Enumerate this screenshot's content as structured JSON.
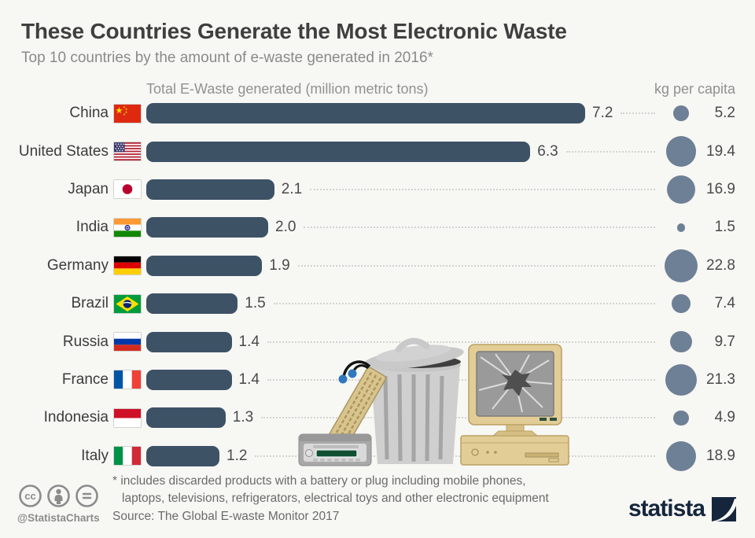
{
  "header": {
    "title": "These Countries Generate the Most Electronic Waste",
    "subtitle": "Top 10 countries by the amount of e-waste generated in 2016*"
  },
  "columns": {
    "bars_header": "Total E-Waste generated (million metric tons)",
    "bubbles_header": "kg per capita"
  },
  "rows": [
    {
      "country": "China",
      "flag": "china-flag",
      "ewaste": "7.2",
      "kg_per_capita": "5.2"
    },
    {
      "country": "United States",
      "flag": "united-states-flag",
      "ewaste": "6.3",
      "kg_per_capita": "19.4"
    },
    {
      "country": "Japan",
      "flag": "japan-flag",
      "ewaste": "2.1",
      "kg_per_capita": "16.9"
    },
    {
      "country": "India",
      "flag": "india-flag",
      "ewaste": "2.0",
      "kg_per_capita": "1.5"
    },
    {
      "country": "Germany",
      "flag": "germany-flag",
      "ewaste": "1.9",
      "kg_per_capita": "22.8"
    },
    {
      "country": "Brazil",
      "flag": "brazil-flag",
      "ewaste": "1.5",
      "kg_per_capita": "7.4"
    },
    {
      "country": "Russia",
      "flag": "russia-flag",
      "ewaste": "1.4",
      "kg_per_capita": "9.7"
    },
    {
      "country": "France",
      "flag": "france-flag",
      "ewaste": "1.4",
      "kg_per_capita": "21.3"
    },
    {
      "country": "Indonesia",
      "flag": "indonesia-flag",
      "ewaste": "1.3",
      "kg_per_capita": "4.9"
    },
    {
      "country": "Italy",
      "flag": "italy-flag",
      "ewaste": "1.2",
      "kg_per_capita": "18.9"
    }
  ],
  "chart_data": {
    "type": "bar",
    "orientation": "horizontal",
    "title": "These Countries Generate the Most Electronic Waste",
    "subtitle": "Top 10 countries by the amount of e-waste generated in 2016*",
    "categories": [
      "China",
      "United States",
      "Japan",
      "India",
      "Germany",
      "Brazil",
      "Russia",
      "France",
      "Indonesia",
      "Italy"
    ],
    "series": [
      {
        "name": "Total E-Waste generated (million metric tons)",
        "values": [
          7.2,
          6.3,
          2.1,
          2.0,
          1.9,
          1.5,
          1.4,
          1.4,
          1.3,
          1.2
        ]
      },
      {
        "name": "kg per capita",
        "values": [
          5.2,
          19.4,
          16.9,
          1.5,
          22.8,
          7.4,
          9.7,
          21.3,
          4.9,
          18.9
        ]
      }
    ],
    "xlim": [
      0,
      7.5
    ],
    "grid": false,
    "legend_position": "none"
  },
  "footer": {
    "footnote_line1": "* includes discarded products with a battery or plug including mobile phones,",
    "footnote_line2": "laptops, televisions, refrigerators, electrical toys and other electronic equipment",
    "source": "Source: The Global E-waste Monitor 2017",
    "credit": "@StatistaCharts",
    "logo_text": "statista"
  },
  "colors": {
    "bar": "#3e5266",
    "bubble": "#6e8095",
    "navy": "#15263c",
    "background": "#f7f7f4"
  }
}
